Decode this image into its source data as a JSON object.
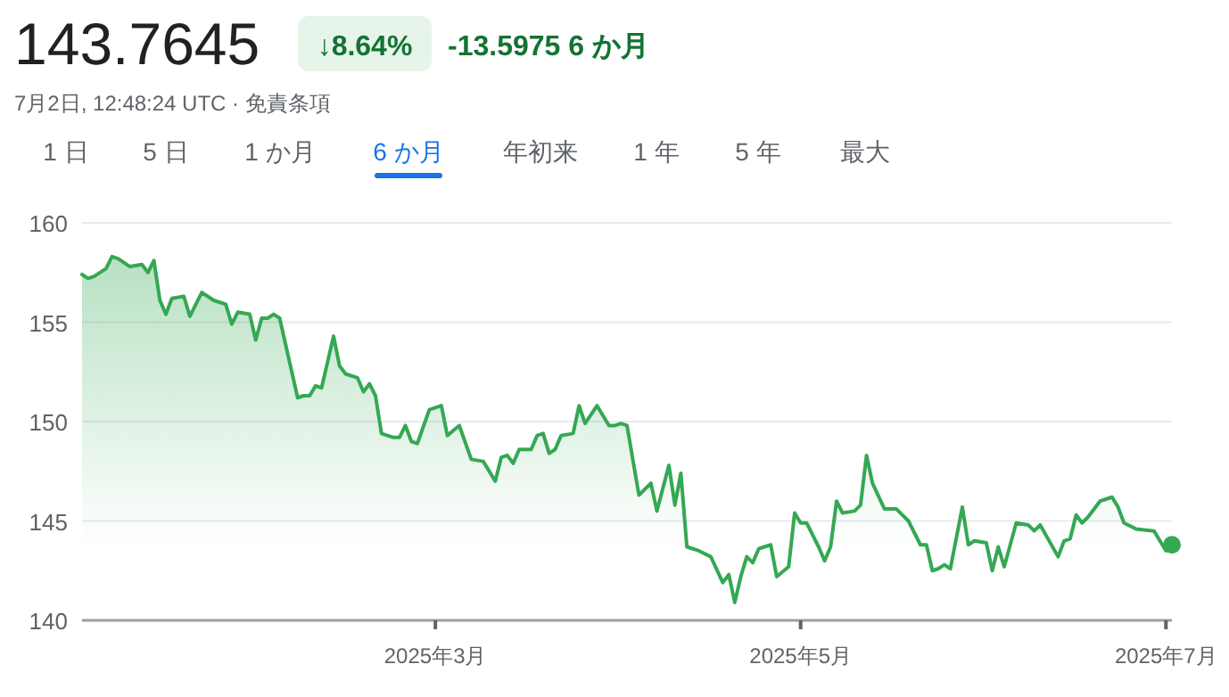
{
  "chart_data": {
    "type": "area",
    "title": "143.7645",
    "subtitle": "7月2日, 12:48:24 UTC · 免責条項",
    "annotations": [
      "↓8.64%",
      "-13.5975 6 か月",
      "1 日",
      "5 日",
      "1 か月",
      "6 か月",
      "年初来",
      "1 年",
      "5 年",
      "最大"
    ],
    "xlim": [
      "2025-01-01",
      "2025-07-02"
    ],
    "xticks": [
      {
        "value": "2025-03-01",
        "label": "2025年3月"
      },
      {
        "value": "2025-05-01",
        "label": "2025年5月"
      },
      {
        "value": "2025-07-01",
        "label": "2025年7月"
      }
    ],
    "ylim": [
      140,
      160
    ],
    "yticks": [
      140,
      145,
      150,
      155,
      160
    ],
    "grid": "y",
    "series": [
      {
        "color": "#34a853",
        "x": [
          "2025-01-01",
          "2025-01-02",
          "2025-01-03",
          "2025-01-05",
          "2025-01-06",
          "2025-01-07",
          "2025-01-09",
          "2025-01-11",
          "2025-01-12",
          "2025-01-13",
          "2025-01-14",
          "2025-01-15",
          "2025-01-16",
          "2025-01-18",
          "2025-01-19",
          "2025-01-21",
          "2025-01-23",
          "2025-01-25",
          "2025-01-26",
          "2025-01-27",
          "2025-01-29",
          "2025-01-30",
          "2025-01-31",
          "2025-02-01",
          "2025-02-02",
          "2025-02-03",
          "2025-02-06",
          "2025-02-07",
          "2025-02-08",
          "2025-02-09",
          "2025-02-10",
          "2025-02-12",
          "2025-02-13",
          "2025-02-14",
          "2025-02-16",
          "2025-02-17",
          "2025-02-18",
          "2025-02-19",
          "2025-02-20",
          "2025-02-22",
          "2025-02-23",
          "2025-02-24",
          "2025-02-25",
          "2025-02-26",
          "2025-02-28",
          "2025-03-02",
          "2025-03-03",
          "2025-03-05",
          "2025-03-07",
          "2025-03-09",
          "2025-03-11",
          "2025-03-12",
          "2025-03-13",
          "2025-03-14",
          "2025-03-15",
          "2025-03-17",
          "2025-03-18",
          "2025-03-19",
          "2025-03-20",
          "2025-03-21",
          "2025-03-22",
          "2025-03-24",
          "2025-03-25",
          "2025-03-26",
          "2025-03-28",
          "2025-03-30",
          "2025-03-31",
          "2025-04-01",
          "2025-04-02",
          "2025-04-04",
          "2025-04-06",
          "2025-04-07",
          "2025-04-09",
          "2025-04-10",
          "2025-04-11",
          "2025-04-12",
          "2025-04-14",
          "2025-04-16",
          "2025-04-18",
          "2025-04-19",
          "2025-04-20",
          "2025-04-21",
          "2025-04-22",
          "2025-04-23",
          "2025-04-24",
          "2025-04-26",
          "2025-04-27",
          "2025-04-29",
          "2025-04-30",
          "2025-05-01",
          "2025-05-02",
          "2025-05-04",
          "2025-05-05",
          "2025-05-06",
          "2025-05-07",
          "2025-05-08",
          "2025-05-10",
          "2025-05-11",
          "2025-05-12",
          "2025-05-13",
          "2025-05-15",
          "2025-05-17",
          "2025-05-19",
          "2025-05-21",
          "2025-05-22",
          "2025-05-23",
          "2025-05-24",
          "2025-05-25",
          "2025-05-26",
          "2025-05-28",
          "2025-05-29",
          "2025-05-30",
          "2025-06-01",
          "2025-06-02",
          "2025-06-03",
          "2025-06-04",
          "2025-06-06",
          "2025-06-08",
          "2025-06-09",
          "2025-06-10",
          "2025-06-13",
          "2025-06-14",
          "2025-06-15",
          "2025-06-16",
          "2025-06-17",
          "2025-06-18",
          "2025-06-20",
          "2025-06-21",
          "2025-06-22",
          "2025-06-23",
          "2025-06-24",
          "2025-06-26",
          "2025-06-29",
          "2025-06-30",
          "2025-07-01",
          "2025-07-02"
        ],
        "values": [
          157.4,
          157.2,
          157.3,
          157.7,
          158.3,
          158.2,
          157.8,
          157.9,
          157.5,
          158.1,
          156.1,
          155.4,
          156.2,
          156.3,
          155.3,
          156.5,
          156.1,
          155.9,
          154.9,
          155.5,
          155.4,
          154.1,
          155.2,
          155.2,
          155.4,
          155.2,
          151.2,
          151.3,
          151.3,
          151.8,
          151.7,
          154.3,
          152.8,
          152.4,
          152.2,
          151.5,
          151.9,
          151.3,
          149.4,
          149.2,
          149.2,
          149.8,
          149.0,
          148.9,
          150.6,
          150.8,
          149.3,
          149.8,
          148.1,
          148.0,
          147.0,
          148.2,
          148.3,
          147.9,
          148.6,
          148.6,
          149.3,
          149.4,
          148.4,
          148.6,
          149.3,
          149.4,
          150.8,
          149.9,
          150.8,
          149.8,
          149.8,
          149.9,
          149.8,
          146.3,
          146.9,
          145.5,
          147.8,
          145.8,
          147.4,
          143.7,
          143.5,
          143.2,
          141.9,
          142.3,
          140.9,
          142.2,
          143.2,
          142.9,
          143.6,
          143.8,
          142.2,
          142.7,
          145.4,
          144.9,
          144.9,
          143.7,
          143.0,
          143.7,
          146.0,
          145.4,
          145.5,
          145.8,
          148.3,
          146.9,
          145.6,
          145.6,
          145.0,
          143.8,
          143.8,
          142.5,
          142.6,
          142.8,
          142.6,
          145.7,
          143.8,
          144.0,
          143.9,
          142.5,
          143.7,
          142.7,
          144.9,
          144.8,
          144.5,
          144.8,
          143.2,
          144.0,
          144.1,
          145.3,
          144.9,
          145.2,
          146.0,
          146.1,
          146.2,
          145.7,
          144.9,
          144.6,
          144.5,
          144.0,
          143.5,
          143.8
        ]
      },
      {
        "type": "scatter",
        "color": "#34a853",
        "marker": "circle",
        "x": [
          "2025-07-02"
        ],
        "values": [
          143.8
        ]
      }
    ]
  }
}
